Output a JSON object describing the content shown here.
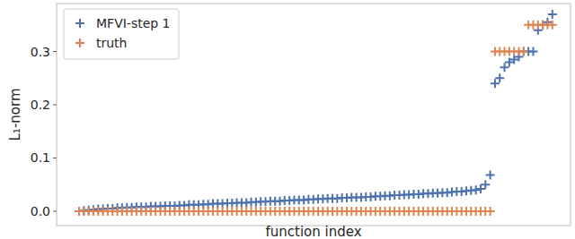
{
  "chart_data": {
    "type": "scatter",
    "x_label": "function index",
    "y_label": "L₁-norm",
    "x": [
      0,
      1,
      2,
      3,
      4,
      5,
      6,
      7,
      8,
      9,
      10,
      11,
      12,
      13,
      14,
      15,
      16,
      17,
      18,
      19,
      20,
      21,
      22,
      23,
      24,
      25,
      26,
      27,
      28,
      29,
      30,
      31,
      32,
      33,
      34,
      35,
      36,
      37,
      38,
      39,
      40,
      41,
      42,
      43,
      44,
      45,
      46,
      47,
      48,
      49,
      50,
      51,
      52,
      53,
      54,
      55,
      56,
      57,
      58,
      59,
      60,
      61,
      62,
      63,
      64,
      65,
      66,
      67,
      68,
      69,
      70,
      71,
      72,
      73,
      74,
      75,
      76,
      77,
      78,
      79,
      80,
      81,
      82,
      83,
      84,
      85,
      86,
      87,
      88,
      89,
      90,
      91,
      92,
      93,
      94,
      95,
      96,
      97,
      98,
      99
    ],
    "series": [
      {
        "name": "MFVI-step 1",
        "color": "#4c72b0",
        "marker": "plus",
        "values": [
          0.0,
          0.001,
          0.002,
          0.003,
          0.004,
          0.004,
          0.005,
          0.005,
          0.006,
          0.006,
          0.007,
          0.007,
          0.008,
          0.008,
          0.008,
          0.009,
          0.009,
          0.009,
          0.01,
          0.01,
          0.01,
          0.011,
          0.011,
          0.012,
          0.012,
          0.012,
          0.013,
          0.013,
          0.014,
          0.014,
          0.014,
          0.015,
          0.015,
          0.016,
          0.016,
          0.016,
          0.017,
          0.017,
          0.018,
          0.018,
          0.019,
          0.019,
          0.019,
          0.02,
          0.02,
          0.021,
          0.021,
          0.021,
          0.022,
          0.022,
          0.023,
          0.023,
          0.024,
          0.024,
          0.024,
          0.025,
          0.025,
          0.026,
          0.026,
          0.026,
          0.027,
          0.027,
          0.028,
          0.028,
          0.029,
          0.029,
          0.03,
          0.03,
          0.031,
          0.031,
          0.032,
          0.032,
          0.033,
          0.033,
          0.034,
          0.034,
          0.035,
          0.035,
          0.036,
          0.037,
          0.037,
          0.038,
          0.039,
          0.04,
          0.042,
          0.05,
          0.068,
          0.24,
          0.25,
          0.27,
          0.28,
          0.285,
          0.29,
          0.3,
          0.3,
          0.3,
          0.34,
          0.35,
          0.355,
          0.37
        ]
      },
      {
        "name": "truth",
        "color": "#dd8452",
        "marker": "plus",
        "values": [
          0,
          0,
          0,
          0,
          0,
          0,
          0,
          0,
          0,
          0,
          0,
          0,
          0,
          0,
          0,
          0,
          0,
          0,
          0,
          0,
          0,
          0,
          0,
          0,
          0,
          0,
          0,
          0,
          0,
          0,
          0,
          0,
          0,
          0,
          0,
          0,
          0,
          0,
          0,
          0,
          0,
          0,
          0,
          0,
          0,
          0,
          0,
          0,
          0,
          0,
          0,
          0,
          0,
          0,
          0,
          0,
          0,
          0,
          0,
          0,
          0,
          0,
          0,
          0,
          0,
          0,
          0,
          0,
          0,
          0,
          0,
          0,
          0,
          0,
          0,
          0,
          0,
          0,
          0,
          0,
          0,
          0,
          0,
          0,
          0,
          0,
          0,
          0.3,
          0.3,
          0.3,
          0.3,
          0.3,
          0.3,
          0.3,
          0.35,
          0.35,
          0.35,
          0.35,
          0.35,
          0.35
        ]
      }
    ],
    "xlim": [
      -4.7,
      102.8
    ],
    "ylim": [
      -0.027,
      0.39
    ],
    "yticks": [
      {
        "value": 0,
        "label": "0.0"
      },
      0.1,
      0.2,
      0.3
    ],
    "tick_labels": "y",
    "grid": false,
    "legend": "upper left"
  }
}
